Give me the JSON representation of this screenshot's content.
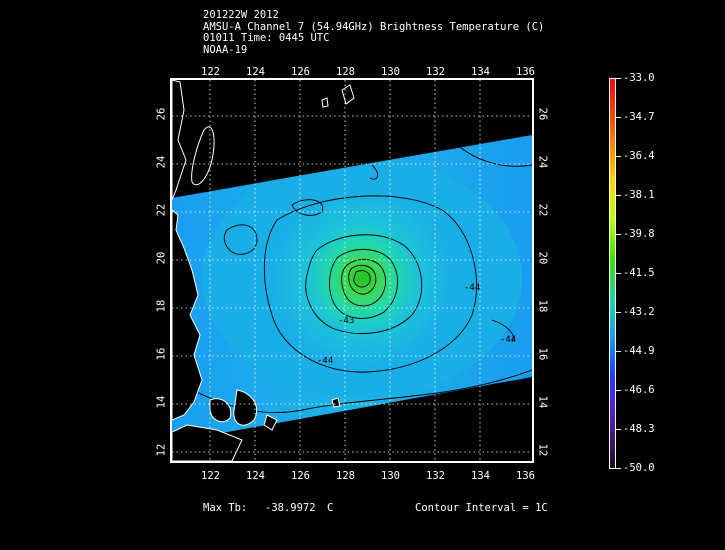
{
  "header": {
    "line1": "201222W 2012",
    "line2": "AMSU-A Channel 7 (54.94GHz) Brightness Temperature (C)",
    "line3": "01011 Time: 0445 UTC",
    "line4": "NOAA-19"
  },
  "map": {
    "lon_ticks": [
      "122",
      "124",
      "126",
      "128",
      "130",
      "132",
      "134",
      "136"
    ],
    "lat_ticks": [
      "12",
      "14",
      "16",
      "18",
      "20",
      "22",
      "24",
      "26"
    ],
    "lon_range": [
      120.3,
      136.3
    ],
    "lat_range": [
      12.0,
      28.0
    ],
    "contour_labels": [
      "-44",
      "-44",
      "-44"
    ],
    "center_label": "-43"
  },
  "colorbar": {
    "labels": [
      "-33.0",
      "-34.7",
      "-36.4",
      "-38.1",
      "-39.8",
      "-41.5",
      "-43.2",
      "-44.9",
      "-46.6",
      "-48.3",
      "-50.0"
    ],
    "min": -50.0,
    "max": -33.0
  },
  "footer": {
    "max_tb_label": "Max Tb:",
    "max_tb_value": "-38.9972",
    "max_tb_unit": "C",
    "contour_interval": "Contour Interval = 1C"
  },
  "colors": {
    "swath": "#1fb6e6",
    "core": "#32d040",
    "background": "#000000"
  }
}
